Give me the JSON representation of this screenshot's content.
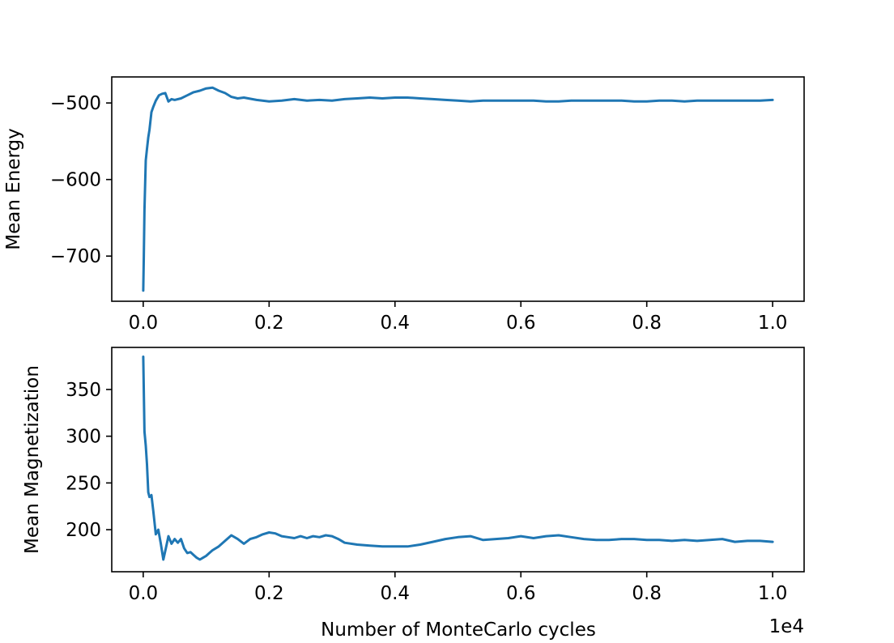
{
  "chart_data": [
    {
      "type": "line",
      "title": "",
      "xlabel": "",
      "ylabel": "Mean Energy",
      "xlim": [
        -0.05,
        1.05
      ],
      "ylim": [
        -759,
        -466
      ],
      "x_ticks": [
        0.0,
        0.2,
        0.4,
        0.6,
        0.8,
        1.0
      ],
      "x_tick_labels": [
        "0.0",
        "0.2",
        "0.4",
        "0.6",
        "0.8",
        "1.0"
      ],
      "y_ticks": [
        -500,
        -600,
        -700
      ],
      "y_tick_labels": [
        "−500",
        "−600",
        "−700"
      ],
      "series": [
        {
          "color": "#1f77b4",
          "x": [
            0.0,
            0.001,
            0.002,
            0.004,
            0.006,
            0.008,
            0.01,
            0.013,
            0.016,
            0.02,
            0.025,
            0.03,
            0.035,
            0.04,
            0.045,
            0.05,
            0.06,
            0.07,
            0.08,
            0.09,
            0.1,
            0.11,
            0.12,
            0.13,
            0.14,
            0.15,
            0.16,
            0.18,
            0.2,
            0.22,
            0.24,
            0.26,
            0.28,
            0.3,
            0.32,
            0.34,
            0.36,
            0.38,
            0.4,
            0.42,
            0.44,
            0.46,
            0.48,
            0.5,
            0.52,
            0.54,
            0.56,
            0.58,
            0.6,
            0.62,
            0.64,
            0.66,
            0.68,
            0.7,
            0.72,
            0.74,
            0.76,
            0.78,
            0.8,
            0.82,
            0.84,
            0.86,
            0.88,
            0.9,
            0.92,
            0.94,
            0.96,
            0.98,
            1.0
          ],
          "y": [
            -745,
            -700,
            -640,
            -575,
            -560,
            -545,
            -535,
            -512,
            -505,
            -497,
            -490,
            -488,
            -487,
            -498,
            -495,
            -496,
            -494,
            -490,
            -486,
            -484,
            -481,
            -480,
            -484,
            -487,
            -492,
            -494,
            -493,
            -496,
            -498,
            -497,
            -495,
            -497,
            -496,
            -497,
            -495,
            -494,
            -493,
            -494,
            -493,
            -493,
            -494,
            -495,
            -496,
            -497,
            -498,
            -497,
            -497,
            -497,
            -497,
            -497,
            -498,
            -498,
            -497,
            -497,
            -497,
            -497,
            -497,
            -498,
            -498,
            -497,
            -497,
            -498,
            -497,
            -497,
            -497,
            -497,
            -497,
            -497,
            -496
          ]
        }
      ]
    },
    {
      "type": "line",
      "title": "",
      "xlabel": "Number of MonteCarlo cycles",
      "ylabel": "Mean Magnetization",
      "x_offset_label": "1e4",
      "xlim": [
        -0.05,
        1.05
      ],
      "ylim": [
        155,
        395
      ],
      "x_ticks": [
        0.0,
        0.2,
        0.4,
        0.6,
        0.8,
        1.0
      ],
      "x_tick_labels": [
        "0.0",
        "0.2",
        "0.4",
        "0.6",
        "0.8",
        "1.0"
      ],
      "y_ticks": [
        200,
        250,
        300,
        350
      ],
      "y_tick_labels": [
        "200",
        "250",
        "300",
        "350"
      ],
      "series": [
        {
          "color": "#1f77b4",
          "x": [
            0.0,
            0.002,
            0.004,
            0.006,
            0.008,
            0.01,
            0.013,
            0.016,
            0.02,
            0.024,
            0.028,
            0.032,
            0.036,
            0.04,
            0.045,
            0.05,
            0.055,
            0.06,
            0.065,
            0.07,
            0.075,
            0.08,
            0.085,
            0.09,
            0.095,
            0.1,
            0.105,
            0.11,
            0.12,
            0.13,
            0.14,
            0.15,
            0.16,
            0.17,
            0.18,
            0.19,
            0.2,
            0.21,
            0.22,
            0.23,
            0.24,
            0.25,
            0.26,
            0.27,
            0.28,
            0.29,
            0.3,
            0.31,
            0.32,
            0.34,
            0.36,
            0.38,
            0.4,
            0.42,
            0.44,
            0.46,
            0.48,
            0.5,
            0.52,
            0.54,
            0.56,
            0.58,
            0.6,
            0.62,
            0.64,
            0.66,
            0.68,
            0.7,
            0.72,
            0.74,
            0.76,
            0.78,
            0.8,
            0.82,
            0.84,
            0.86,
            0.88,
            0.9,
            0.92,
            0.94,
            0.96,
            0.98,
            1.0
          ],
          "y": [
            385,
            305,
            290,
            270,
            240,
            235,
            237,
            220,
            195,
            200,
            185,
            168,
            180,
            193,
            185,
            190,
            186,
            190,
            180,
            175,
            176,
            173,
            170,
            168,
            170,
            172,
            175,
            178,
            182,
            188,
            194,
            190,
            185,
            190,
            192,
            195,
            197,
            196,
            193,
            192,
            191,
            193,
            191,
            193,
            192,
            194,
            193,
            190,
            186,
            184,
            183,
            182,
            182,
            182,
            184,
            187,
            190,
            192,
            193,
            189,
            190,
            191,
            193,
            191,
            193,
            194,
            192,
            190,
            189,
            189,
            190,
            190,
            189,
            189,
            188,
            189,
            188,
            189,
            190,
            187,
            188,
            188,
            187
          ]
        }
      ]
    }
  ]
}
